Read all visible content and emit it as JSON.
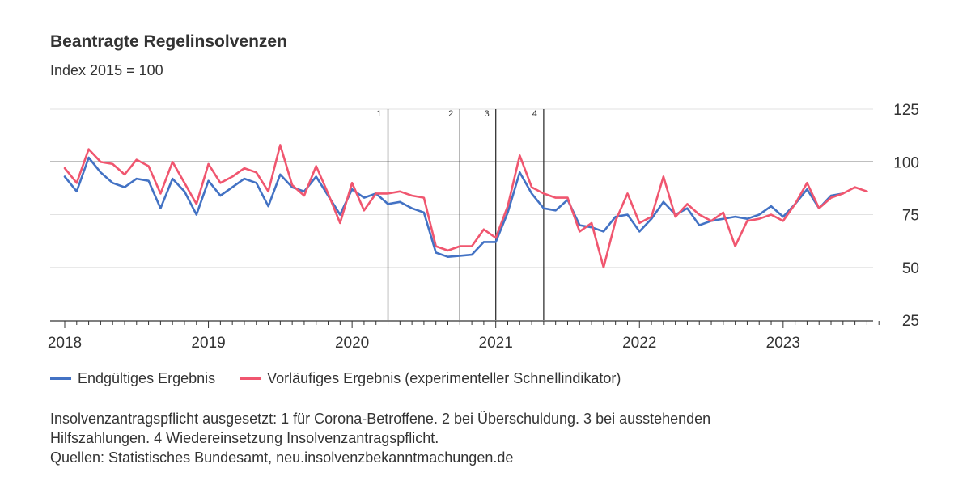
{
  "header": {
    "title": "Beantragte Regelinsolvenzen",
    "subtitle": "Index 2015 = 100"
  },
  "chart_data": {
    "type": "line",
    "ylim": [
      25,
      125
    ],
    "yticks": [
      "125",
      "100",
      "75",
      "50",
      "25"
    ],
    "ytick_values": [
      125,
      100,
      75,
      50,
      25
    ],
    "reference_line": 100,
    "x_start": "2018-01",
    "x_end": "2023-09",
    "year_labels": [
      {
        "label": "2018",
        "date": "2018-01"
      },
      {
        "label": "2019",
        "date": "2019-01"
      },
      {
        "label": "2020",
        "date": "2020-01"
      },
      {
        "label": "2021",
        "date": "2021-01"
      },
      {
        "label": "2022",
        "date": "2022-01"
      },
      {
        "label": "2023",
        "date": "2023-01"
      }
    ],
    "events": [
      {
        "label": "1",
        "date": "2020-04"
      },
      {
        "label": "2",
        "date": "2020-10"
      },
      {
        "label": "3",
        "date": "2021-01"
      },
      {
        "label": "4",
        "date": "2021-05"
      }
    ],
    "colors": {
      "final": "#4372c4",
      "preliminary": "#f0566f"
    },
    "series": [
      {
        "name": "Endgültiges Ergebnis",
        "start": "2018-01",
        "values": [
          93,
          86,
          102,
          95,
          90,
          88,
          92,
          91,
          78,
          92,
          86,
          75,
          91,
          84,
          88,
          92,
          90,
          79,
          94,
          88,
          86,
          93,
          84,
          75,
          87,
          83,
          85,
          80,
          81,
          78,
          76,
          57,
          55,
          55.5,
          56,
          62,
          62,
          76,
          95,
          85,
          78,
          77,
          82,
          70,
          69,
          67,
          74,
          75,
          67,
          73,
          81,
          75,
          78,
          70,
          72,
          73,
          74,
          73,
          75,
          79,
          74,
          80,
          87,
          78,
          84,
          85
        ]
      },
      {
        "name": "Vorläufiges Ergebnis (experimenteller Schnellindikator)",
        "start": "2018-01",
        "values": [
          97,
          90,
          106,
          100,
          99,
          94,
          101,
          98,
          85,
          100,
          90,
          80,
          99,
          90,
          93,
          97,
          95,
          86,
          108,
          89,
          84,
          98,
          85,
          71,
          90,
          77,
          85,
          85,
          86,
          84,
          83,
          60,
          58,
          60,
          60,
          68,
          64,
          79,
          103,
          88,
          85,
          83,
          83,
          67,
          71,
          50,
          72,
          85,
          71,
          74,
          93,
          74,
          80,
          75,
          72,
          76,
          60,
          72,
          73,
          75,
          72,
          80,
          90,
          78,
          83,
          85,
          88,
          86
        ]
      }
    ]
  },
  "legend": {
    "items": [
      {
        "label": "Endgültiges Ergebnis",
        "color": "#4372c4"
      },
      {
        "label": "Vorläufiges Ergebnis (experimenteller Schnellindikator)",
        "color": "#f0566f"
      }
    ]
  },
  "notes": {
    "line1": "Insolvenzantragspflicht ausgesetzt: 1 für Corona-Betroffene. 2 bei Überschuldung. 3 bei ausstehenden",
    "line2": "Hilfszahlungen. 4 Wiedereinsetzung Insolvenzantragspflicht.",
    "line3": "Quellen: Statistisches Bundesamt, neu.insolvenzbekanntmachungen.de"
  }
}
